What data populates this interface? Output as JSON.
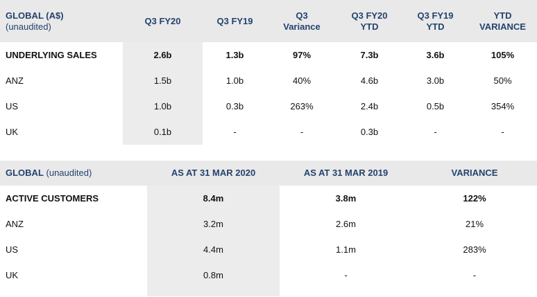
{
  "sales_table": {
    "title": "GLOBAL (A$)",
    "subtitle": "(unaudited)",
    "columns": [
      {
        "line1": "Q3 FY20",
        "line2": ""
      },
      {
        "line1": "Q3 FY19",
        "line2": ""
      },
      {
        "line1": "Q3",
        "line2": "Variance"
      },
      {
        "line1": "Q3 FY20",
        "line2": "YTD"
      },
      {
        "line1": "Q3 FY19",
        "line2": "YTD"
      },
      {
        "line1": "YTD",
        "line2": "VARIANCE"
      }
    ],
    "rows": [
      {
        "label": "UNDERLYING SALES",
        "values": [
          "2.6b",
          "1.3b",
          "97%",
          "7.3b",
          "3.6b",
          "105%"
        ]
      },
      {
        "label": "ANZ",
        "values": [
          "1.5b",
          "1.0b",
          "40%",
          "4.6b",
          "3.0b",
          "50%"
        ]
      },
      {
        "label": "US",
        "values": [
          "1.0b",
          "0.3b",
          "263%",
          "2.4b",
          "0.5b",
          "354%"
        ]
      },
      {
        "label": "UK",
        "values": [
          "0.1b",
          "-",
          "-",
          "0.3b",
          "-",
          "-"
        ]
      }
    ]
  },
  "customers_table": {
    "title": "GLOBAL",
    "subtitle": "(unaudited)",
    "columns": [
      "AS AT 31 MAR 2020",
      "AS AT 31 MAR 2019",
      "VARIANCE"
    ],
    "rows": [
      {
        "label": "ACTIVE CUSTOMERS",
        "values": [
          "8.4m",
          "3.8m",
          "122%"
        ]
      },
      {
        "label": "ANZ",
        "values": [
          "3.2m",
          "2.6m",
          "21%"
        ]
      },
      {
        "label": "US",
        "values": [
          "4.4m",
          "1.1m",
          "283%"
        ]
      },
      {
        "label": "UK",
        "values": [
          "0.8m",
          "-",
          "-"
        ]
      }
    ]
  },
  "colors": {
    "header_text": "#23426e",
    "header_bg": "#e9e9e9",
    "highlight_bg": "#ececec"
  }
}
